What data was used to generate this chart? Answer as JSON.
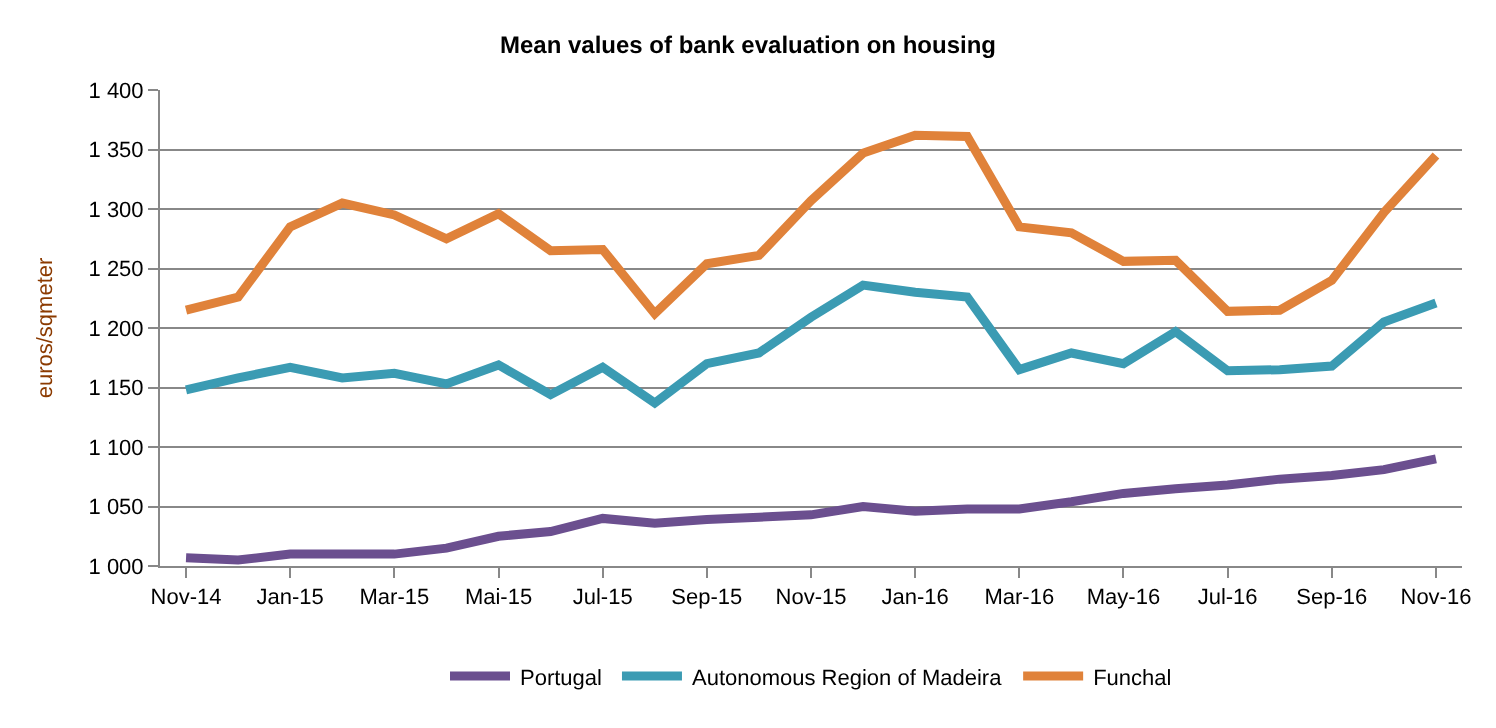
{
  "chart_data": {
    "type": "line",
    "title": "Mean values of bank evaluation on housing",
    "ylabel": "euros/sqmeter",
    "categories": [
      "Nov-14",
      null,
      "Jan-15",
      null,
      "Mar-15",
      null,
      "Mai-15",
      null,
      "Jul-15",
      null,
      "Sep-15",
      null,
      "Nov-15",
      null,
      "Jan-16",
      null,
      "Mar-16",
      null,
      "May-16",
      null,
      "Jul-16",
      null,
      "Sep-16",
      null,
      "Nov-16"
    ],
    "series": [
      {
        "name": "Portugal",
        "color": "#6b4f8f",
        "values": [
          1007,
          1005,
          1010,
          1010,
          1010,
          1015,
          1025,
          1029,
          1040,
          1036,
          1039,
          1041,
          1043,
          1050,
          1046,
          1048,
          1048,
          1054,
          1061,
          1065,
          1068,
          1073,
          1076,
          1081,
          1090
        ]
      },
      {
        "name": "Autonomous Region of Madeira",
        "color": "#3b9bb3",
        "values": [
          1148,
          1158,
          1167,
          1158,
          1162,
          1153,
          1169,
          1144,
          1167,
          1137,
          1170,
          1179,
          1209,
          1236,
          1230,
          1226,
          1165,
          1179,
          1170,
          1197,
          1164,
          1165,
          1168,
          1205,
          1221
        ]
      },
      {
        "name": "Funchal",
        "color": "#e0823a",
        "values": [
          1215,
          1226,
          1285,
          1305,
          1295,
          1275,
          1296,
          1265,
          1266,
          1212,
          1254,
          1261,
          1307,
          1347,
          1362,
          1361,
          1285,
          1280,
          1256,
          1257,
          1214,
          1215,
          1240,
          1297,
          1345
        ]
      }
    ],
    "ylim": [
      1000,
      1400
    ],
    "yticks": [
      {
        "value": 1000,
        "label": "1 000"
      },
      {
        "value": 1050,
        "label": "1 050"
      },
      {
        "value": 1100,
        "label": "1 100"
      },
      {
        "value": 1150,
        "label": "1 150"
      },
      {
        "value": 1200,
        "label": "1 200"
      },
      {
        "value": 1250,
        "label": "1 250"
      },
      {
        "value": 1300,
        "label": "1 300"
      },
      {
        "value": 1350,
        "label": "1 350"
      },
      {
        "value": 1400,
        "label": "1 400"
      }
    ],
    "grid": "y",
    "legend": "bottom",
    "marker": "none",
    "line_style": "solid"
  }
}
